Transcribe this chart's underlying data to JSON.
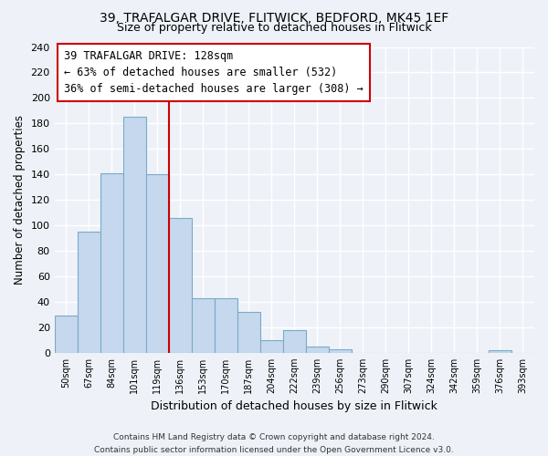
{
  "title1": "39, TRAFALGAR DRIVE, FLITWICK, BEDFORD, MK45 1EF",
  "title2": "Size of property relative to detached houses in Flitwick",
  "xlabel": "Distribution of detached houses by size in Flitwick",
  "ylabel": "Number of detached properties",
  "bin_labels": [
    "50sqm",
    "67sqm",
    "84sqm",
    "101sqm",
    "119sqm",
    "136sqm",
    "153sqm",
    "170sqm",
    "187sqm",
    "204sqm",
    "222sqm",
    "239sqm",
    "256sqm",
    "273sqm",
    "290sqm",
    "307sqm",
    "324sqm",
    "342sqm",
    "359sqm",
    "376sqm",
    "393sqm"
  ],
  "bar_heights": [
    29,
    95,
    141,
    185,
    140,
    106,
    43,
    43,
    32,
    10,
    18,
    5,
    3,
    0,
    0,
    0,
    0,
    0,
    0,
    2,
    0
  ],
  "bar_color": "#c5d8ed",
  "bar_edge_color": "#7aaac8",
  "vline_x": 4.5,
  "vline_color": "#cc0000",
  "ylim": [
    0,
    240
  ],
  "yticks": [
    0,
    20,
    40,
    60,
    80,
    100,
    120,
    140,
    160,
    180,
    200,
    220,
    240
  ],
  "annotation_title": "39 TRAFALGAR DRIVE: 128sqm",
  "annotation_line1": "← 63% of detached houses are smaller (532)",
  "annotation_line2": "36% of semi-detached houses are larger (308) →",
  "annotation_box_color": "white",
  "annotation_box_edge": "#cc0000",
  "footer1": "Contains HM Land Registry data © Crown copyright and database right 2024.",
  "footer2": "Contains public sector information licensed under the Open Government Licence v3.0.",
  "bg_color": "#eef2f8",
  "grid_color": "#ffffff",
  "title1_fontsize": 10,
  "title2_fontsize": 9
}
